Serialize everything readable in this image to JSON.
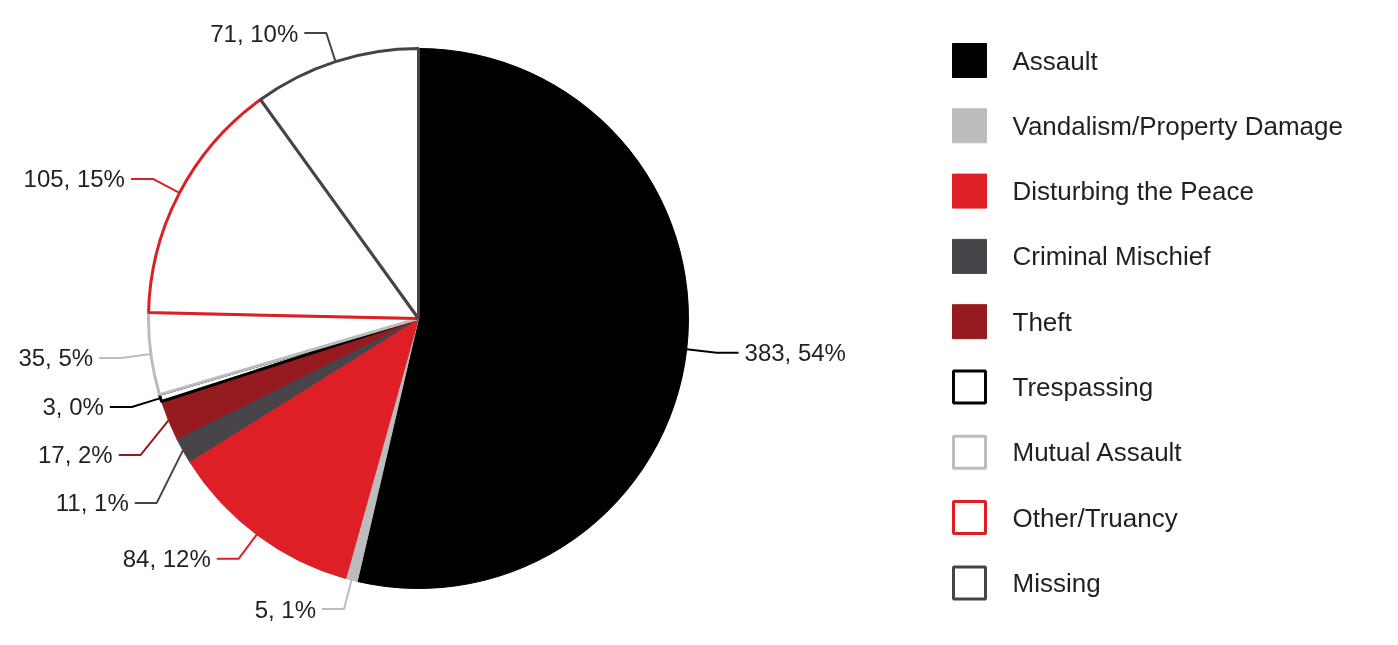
{
  "chart_data": {
    "type": "pie",
    "categories": [
      "Assault",
      "Vandalism/Property Damage",
      "Disturbing the Peace",
      "Criminal Mischief",
      "Theft",
      "Trespassing",
      "Mutual Assault",
      "Other/Truancy",
      "Missing"
    ],
    "values": [
      383,
      5,
      84,
      11,
      17,
      3,
      35,
      105,
      71
    ],
    "colors": [
      "#000000",
      "#bcbcbc",
      "#de1f26",
      "#464448",
      "#951b21",
      "#000000",
      "#bcbcbc",
      "#de1f26",
      "#464448"
    ],
    "value_labels": [
      "383, 54%",
      "5, 1%",
      "84, 12%",
      "11, 1%",
      "17, 2%",
      "3, 0%",
      "35, 5%",
      "105, 15%",
      "71, 10%"
    ],
    "legend": "right"
  }
}
